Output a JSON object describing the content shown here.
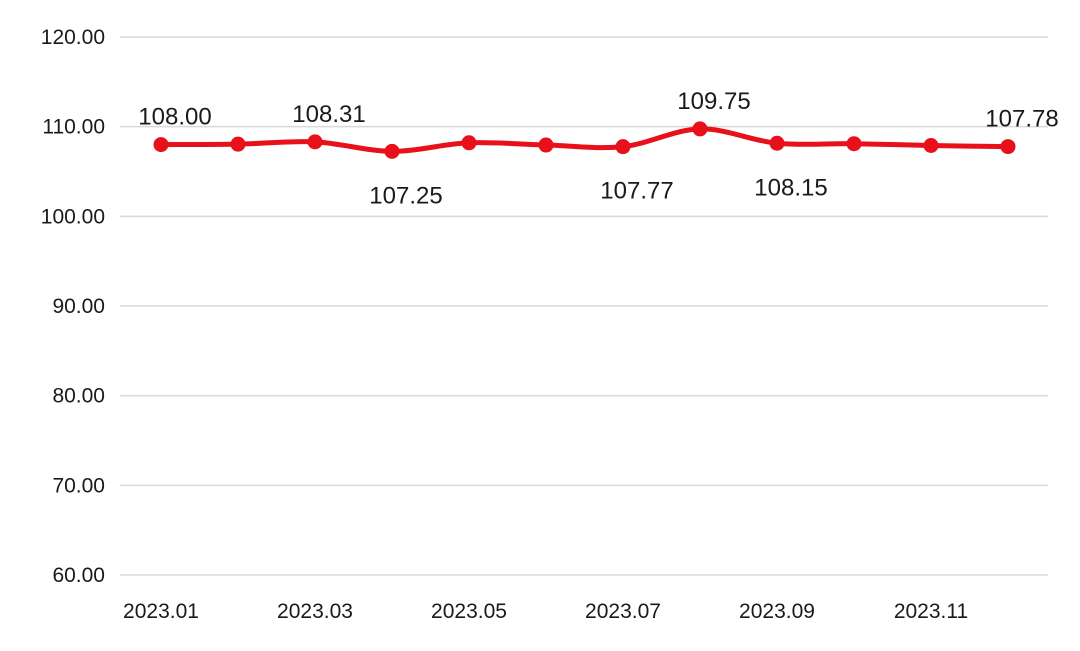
{
  "chart_data": {
    "type": "line",
    "title": "",
    "xlabel": "",
    "ylabel": "",
    "ylim": [
      60,
      120
    ],
    "y_ticks": [
      "60.00",
      "70.00",
      "80.00",
      "90.00",
      "100.00",
      "110.00",
      "120.00"
    ],
    "x": [
      "2023.01",
      "2023.02",
      "2023.03",
      "2023.04",
      "2023.05",
      "2023.06",
      "2023.07",
      "2023.08",
      "2023.09",
      "2023.10",
      "2023.11",
      "2023.12"
    ],
    "x_tick_labels": [
      "2023.01",
      "",
      "2023.03",
      "",
      "2023.05",
      "",
      "2023.07",
      "",
      "2023.09",
      "",
      "2023.11",
      ""
    ],
    "series": [
      {
        "values": [
          108.0,
          108.05,
          108.31,
          107.25,
          108.2,
          107.95,
          107.77,
          109.75,
          108.15,
          108.1,
          107.9,
          107.78
        ],
        "data_labels": [
          "108.00",
          "",
          "108.31",
          "107.25",
          "",
          "",
          "107.77",
          "109.75",
          "108.15",
          "",
          "",
          "107.78"
        ],
        "label_position": [
          "above",
          "",
          "above",
          "below",
          "",
          "",
          "below",
          "above",
          "below",
          "",
          "",
          "above"
        ]
      }
    ],
    "colors": {
      "line": "#e8101a",
      "grid": "#d9d9d9"
    },
    "grid": true,
    "legend": "none"
  }
}
